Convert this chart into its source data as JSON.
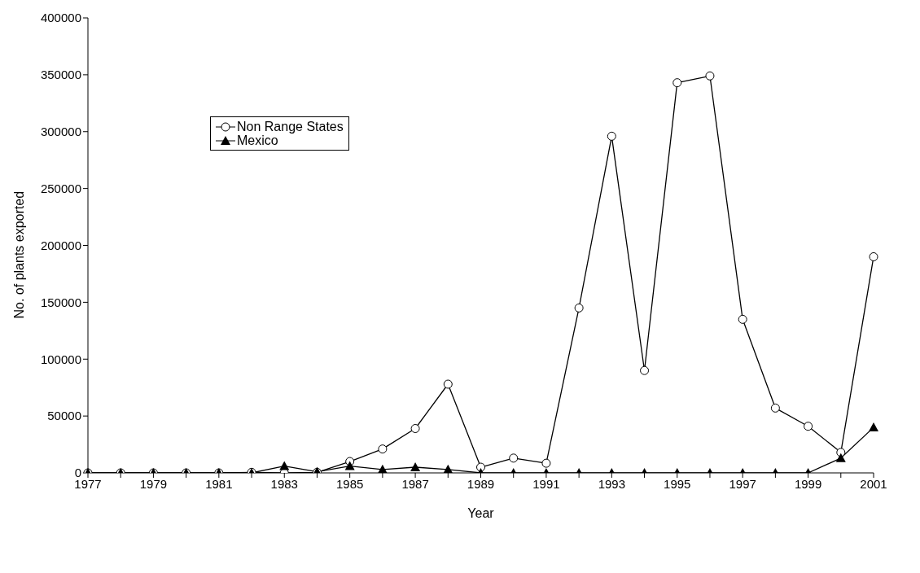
{
  "chart_data": {
    "type": "line",
    "xlabel": "Year",
    "ylabel": "No. of plants exported",
    "categories": [
      "1977",
      null,
      "1979",
      null,
      "1981",
      null,
      "1983",
      null,
      "1985",
      null,
      "1987",
      null,
      "1989",
      null,
      "1991",
      null,
      "1993",
      null,
      "1995",
      null,
      "1997",
      null,
      "1999",
      null,
      "2001"
    ],
    "series": [
      {
        "name": "Non Range States",
        "color": "#000000",
        "marker": "circle",
        "values": [
          0,
          0,
          0,
          0,
          0,
          500,
          0,
          500,
          10000,
          21000,
          39000,
          78000,
          5000,
          13000,
          8500,
          145000,
          296000,
          90000,
          343000,
          349000,
          135000,
          57000,
          41000,
          18000,
          190000
        ]
      },
      {
        "name": "Mexico",
        "color": "#000000",
        "marker": "triangle",
        "values": [
          0,
          0,
          0,
          0,
          0,
          0,
          6000,
          1000,
          6000,
          3000,
          5000,
          3000,
          0,
          0,
          0,
          0,
          0,
          0,
          0,
          0,
          0,
          0,
          0,
          13000,
          40000
        ]
      }
    ],
    "ylim": [
      0,
      400000
    ],
    "yticks": [
      0,
      50000,
      100000,
      150000,
      200000,
      250000,
      300000,
      350000,
      400000
    ],
    "grid": false,
    "legend": "top left",
    "line_style": "solid"
  }
}
